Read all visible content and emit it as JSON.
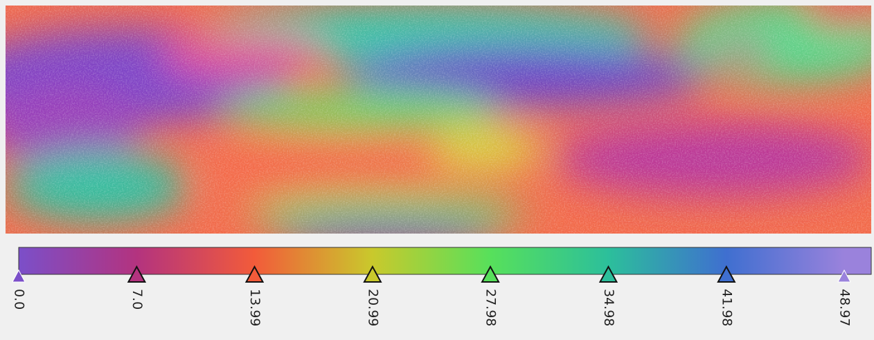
{
  "colorbar": {
    "stops": [
      {
        "value": 0,
        "label": "0.0",
        "color": "#7b4fc9"
      },
      {
        "value": 7,
        "label": "7.0",
        "color": "#b3337f"
      },
      {
        "value": 13.99,
        "label": "13.99",
        "color": "#f25b3a"
      },
      {
        "value": 20.99,
        "label": "20.99",
        "color": "#c9c92c"
      },
      {
        "value": 27.98,
        "label": "27.98",
        "color": "#57e05b"
      },
      {
        "value": 34.98,
        "label": "34.98",
        "color": "#2cbf9b"
      },
      {
        "value": 41.98,
        "label": "41.98",
        "color": "#3f6fd0"
      },
      {
        "value": 48.97,
        "label": "48.97",
        "color": "#9a82dc"
      }
    ]
  }
}
